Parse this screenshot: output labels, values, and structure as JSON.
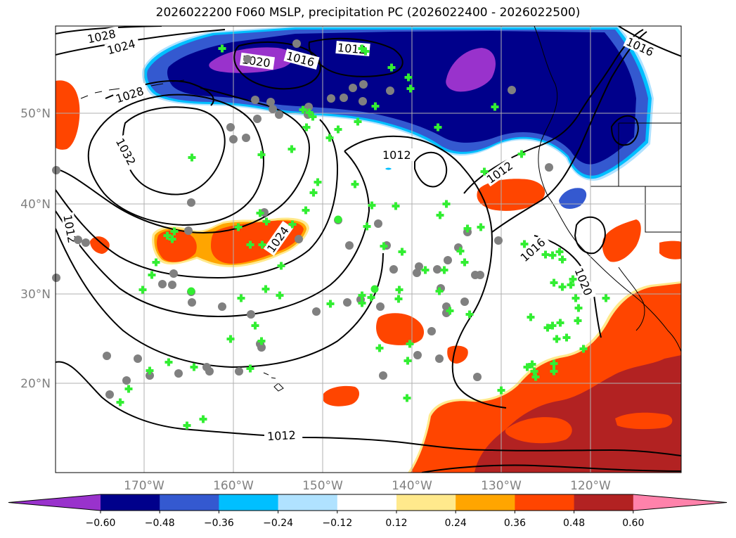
{
  "title": "2026022200 F060 MSLP, precipitation PC (2026022400 - 2026022500)",
  "colors": {
    "grid": "#b0b0b0",
    "axis_label": "#808080",
    "station_marker_fill": "#33ee33",
    "station_circle": "#808080"
  },
  "lat_labels": [
    "50°N",
    "40°N",
    "30°N",
    "20°N"
  ],
  "lon_labels": [
    "170°W",
    "160°W",
    "150°W",
    "140°W",
    "130°W",
    "120°W"
  ],
  "contour_labels": [
    "1028",
    "1024",
    "1028",
    "1032",
    "1012",
    "1020",
    "1016",
    "1012",
    "1012",
    "1024",
    "1016",
    "1020",
    "1012",
    "1012",
    "1016"
  ],
  "colorbar": {
    "colors": [
      "#9932cc",
      "#00008b",
      "#3459d0",
      "#00bfff",
      "#b0e2ff",
      "#ffffff",
      "#ffe98c",
      "#ffa500",
      "#ff4500",
      "#b22222",
      "#ff82ab"
    ],
    "tick_labels": [
      "−0.60",
      "−0.48",
      "−0.36",
      "−0.24",
      "−0.12",
      "0.12",
      "0.24",
      "0.36",
      "0.48",
      "0.60"
    ]
  }
}
